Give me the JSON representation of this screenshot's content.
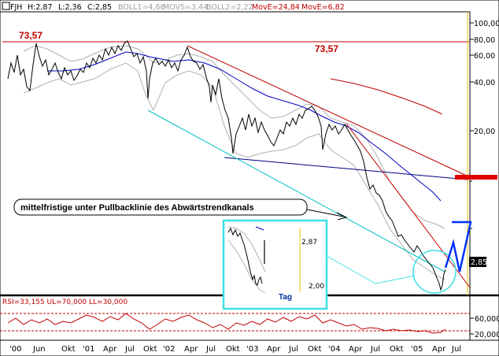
{
  "header": {
    "symbol": "FJH",
    "h": "H:2,87",
    "l": "L:2,36",
    "c": "C:2,85",
    "boll1": "BOLL1=4,66",
    "movs": "MOVS=3,44",
    "boll2": "BOLL2=2,22",
    "move1": "MovE=24,84",
    "move2": "MovE=6,82"
  },
  "colors": {
    "price": "#000000",
    "boll": "#b0b0b0",
    "movs": "#0000c0",
    "move_long": "#c00000",
    "move_short": "#c00000",
    "trend_red": "#c00000",
    "channel": "#00c0c0",
    "support": "#000080",
    "rsi": "#c00000",
    "label_red": "#c00000",
    "arrow_blue": "#0030ff",
    "inset_border": "#40e0e0"
  },
  "annotations": {
    "high_left": "73,57",
    "high_right": "73,57",
    "callout": "mittelfristige unter Pullbacklinie des Abwärtstrendkanals",
    "inset_tag": "Tag",
    "inset_high": "2,87",
    "inset_low": "2,00",
    "last_price": "2,85"
  },
  "rsi_label": "RSI=33,155 UL=70,000 LL=30,000",
  "chart_data": [
    {
      "type": "line",
      "title": "",
      "yscale": "log",
      "ylim": [
        2,
        100
      ],
      "y_ticks": [
        "100,00",
        "80,00",
        "60,00",
        "40,00",
        "20,00"
      ],
      "x_ticks": [
        "'00",
        "Jun",
        "Okt",
        "'01",
        "Apr",
        "Jul",
        "Okt",
        "'02",
        "Apr",
        "Jul",
        "Okt",
        "'03",
        "Apr",
        "Jul",
        "Okt",
        "'04",
        "Apr",
        "Jul",
        "Okt",
        "'05",
        "Apr",
        "Jul"
      ],
      "reference_line": 73.57,
      "series": [
        {
          "name": "",
          "x": [
            "2000-01",
            "2000-03",
            "2000-05",
            "2000-07",
            "2000-09",
            "2000-11",
            "2001-01",
            "2001-03",
            "2001-05",
            "2001-07",
            "2001-09",
            "2001-10",
            "2001-12",
            "2002-02",
            "2002-04",
            "2002-06",
            "2002-08",
            "2002-10",
            "2002-12",
            "2003-02",
            "2003-04",
            "2003-06",
            "2003-08",
            "2003-10",
            "2003-12",
            "2004-02",
            "2004-04",
            "2004-06",
            "2004-08",
            "2004-10",
            "2004-12",
            "2005-02",
            "2005-03",
            "2005-04",
            "2005-05"
          ],
          "values": [
            55,
            45,
            58,
            50,
            48,
            55,
            60,
            62,
            70,
            58,
            40,
            28,
            50,
            55,
            50,
            42,
            30,
            22,
            25,
            22,
            21,
            25,
            30,
            27,
            20,
            23,
            20,
            12,
            8,
            6,
            5,
            4,
            3,
            2.4,
            2.85
          ]
        }
      ]
    },
    {
      "type": "line",
      "title": "",
      "ylim": [
        0,
        100
      ],
      "y_ticks": [
        "60,000",
        "20,000"
      ],
      "upper_line": 70,
      "lower_line": 30,
      "series": [
        {
          "name": "RSI",
          "x": [
            "2000-01",
            "2000-06",
            "2001-01",
            "2001-06",
            "2002-01",
            "2002-06",
            "2003-01",
            "2003-06",
            "2004-01",
            "2004-06",
            "2005-01",
            "2005-05"
          ],
          "values": [
            55,
            50,
            55,
            52,
            50,
            45,
            48,
            52,
            47,
            40,
            35,
            33.155
          ]
        }
      ]
    }
  ]
}
